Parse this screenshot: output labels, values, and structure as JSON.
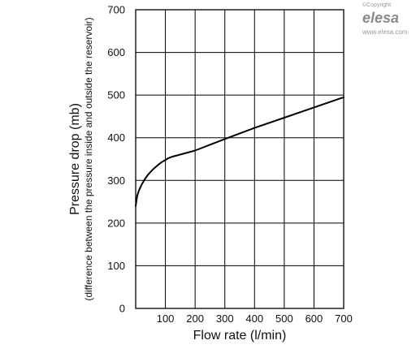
{
  "watermark": {
    "copyright": "©Copyright",
    "brand": "elesa",
    "url": "www.elesa.com"
  },
  "chart_data": {
    "type": "line",
    "title": "",
    "xlabel": "Flow rate (l/min)",
    "ylabel": "Pressure drop (mb)",
    "ylabel_sub": "(difference between the pressure inside and outside the reservoir)",
    "xlim": [
      0,
      700
    ],
    "ylim": [
      0,
      700
    ],
    "x_ticks": [
      100,
      200,
      300,
      400,
      500,
      600,
      700
    ],
    "y_ticks": [
      0,
      100,
      200,
      300,
      400,
      500,
      600,
      700
    ],
    "grid": true,
    "series": [
      {
        "color": "#000000",
        "x": [
          0,
          5,
          10,
          20,
          30,
          40,
          50,
          60,
          70,
          80,
          90,
          100,
          110,
          120,
          200,
          300,
          400,
          500,
          600,
          700
        ],
        "y": [
          240,
          263,
          275,
          290,
          302,
          312,
          320,
          327,
          333,
          339,
          344,
          348,
          352,
          355,
          370,
          397,
          423,
          447,
          471,
          495
        ]
      }
    ]
  }
}
